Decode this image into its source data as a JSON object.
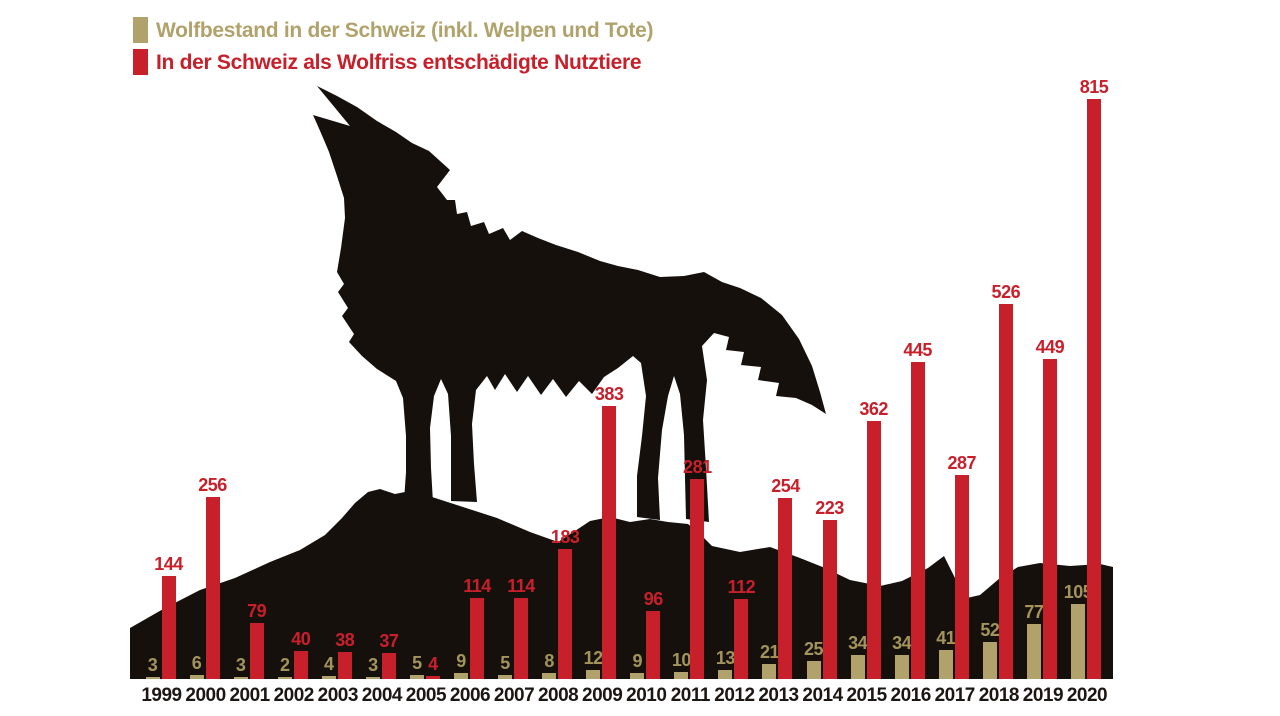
{
  "legend": {
    "series": [
      {
        "label": "Wolfbestand in der Schweiz (inkl. Welpen und Tote)",
        "color": "#b1a26b"
      },
      {
        "label": "In der Schweiz als Wolfriss entschädigte Nutztiere",
        "color": "#c8202b"
      }
    ]
  },
  "chart_data": {
    "type": "bar",
    "title": "",
    "xlabel": "",
    "ylabel": "",
    "categories": [
      "1999",
      "2000",
      "2001",
      "2002",
      "2003",
      "2004",
      "2005",
      "2006",
      "2007",
      "2008",
      "2009",
      "2010",
      "2011",
      "2012",
      "2013",
      "2014",
      "2015",
      "2016",
      "2017",
      "2018",
      "2019",
      "2020"
    ],
    "series": [
      {
        "name": "Wolfbestand in der Schweiz (inkl. Welpen und Tote)",
        "color": "#b1a26b",
        "label_color": "#a3945c",
        "values": [
          3,
          6,
          3,
          2,
          4,
          3,
          5,
          9,
          5,
          8,
          12,
          9,
          10,
          13,
          21,
          25,
          34,
          34,
          41,
          52,
          77,
          105
        ]
      },
      {
        "name": "In der Schweiz als Wolfriss entschädigte Nutztiere",
        "color": "#c8202b",
        "label_color": "#c8202b",
        "values": [
          144,
          256,
          79,
          40,
          38,
          37,
          4,
          114,
          114,
          183,
          383,
          96,
          281,
          112,
          254,
          223,
          362,
          445,
          287,
          526,
          449,
          815
        ]
      }
    ],
    "ylim": [
      0,
      815
    ],
    "grid": false,
    "data_labels": true,
    "legend_position": "top-left",
    "background_art": "black silhouette of a howling wolf standing on a rocky hill",
    "silhouette_color": "#16100d"
  }
}
